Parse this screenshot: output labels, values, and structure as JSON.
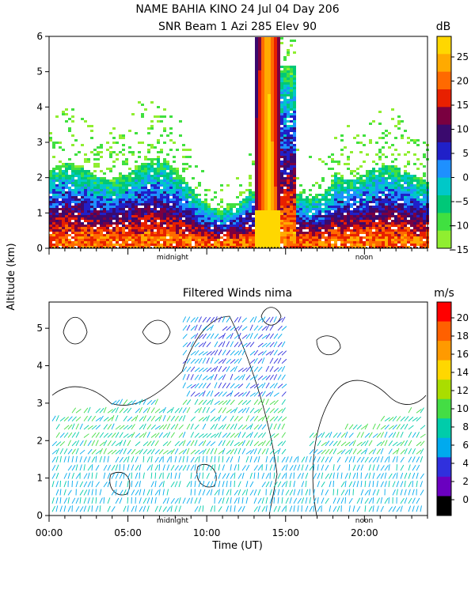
{
  "title_line1": "NAME BAHIA KINO  24 Jul 04 Day 206",
  "title_line2": "SNR Beam 1 Azi 285 Elev 90",
  "shared_ylabel": "Altitude (km)",
  "chart_data": [
    {
      "type": "heatmap",
      "title": "SNR Beam 1 Azi 285 Elev 90",
      "ylim": [
        0,
        6
      ],
      "y_ticks": [
        "0",
        "1",
        "2",
        "3",
        "4",
        "5",
        "6"
      ],
      "x_markers": [
        "midnight",
        "noon"
      ],
      "colorbar": {
        "unit": "dB",
        "ticks": [
          "25",
          "20",
          "15",
          "10",
          "5",
          "0",
          "−5",
          "−10",
          "−15"
        ],
        "colors": [
          "#ffd700",
          "#ffaa00",
          "#ff6a00",
          "#e82000",
          "#7a0040",
          "#3a0a6e",
          "#2020c8",
          "#1e90ff",
          "#00c8c8",
          "#00c878",
          "#40e040",
          "#90ee30"
        ]
      }
    },
    {
      "type": "scatter",
      "title": "Filtered Winds nima",
      "ylim": [
        0,
        5.7
      ],
      "y_ticks": [
        "0",
        "1",
        "2",
        "3",
        "4",
        "5"
      ],
      "x_ticks": [
        "00:00",
        "05:00",
        "10:00",
        "15:00",
        "20:00"
      ],
      "xlabel": "Time (UT)",
      "x_markers": [
        "midnight",
        "noon"
      ],
      "colorbar": {
        "unit": "m/s",
        "ticks": [
          "20",
          "18",
          "16",
          "14",
          "12",
          "10",
          "8",
          "6",
          "4",
          "2",
          "0"
        ],
        "colors": [
          "#ff0000",
          "#ff6000",
          "#ff9a00",
          "#ffd700",
          "#aadd00",
          "#44dd44",
          "#00ccaa",
          "#00aaee",
          "#3030dd",
          "#6a00c0",
          "#000000"
        ]
      }
    }
  ]
}
